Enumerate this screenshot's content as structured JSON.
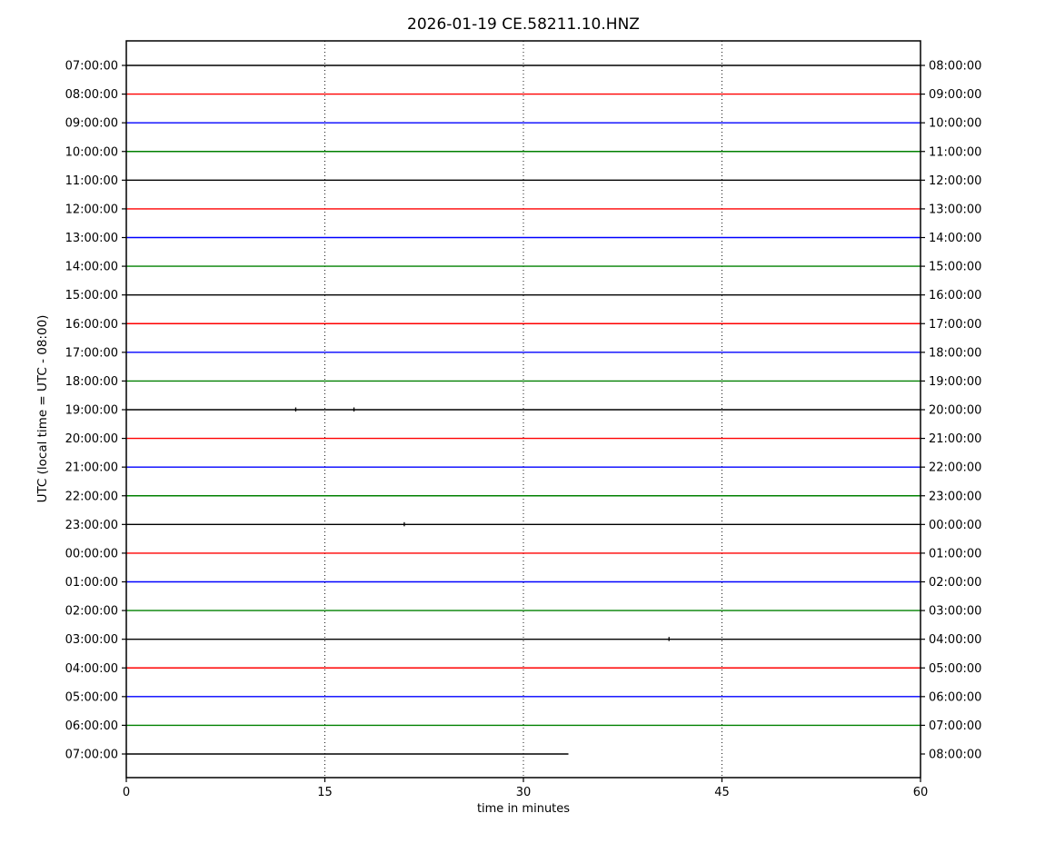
{
  "chart_data": {
    "type": "line",
    "variant": "seismic-helicorder-dayplot",
    "title": "2026-01-19 CE.58211.10.HNZ",
    "xlabel": "time in minutes",
    "ylabel": "UTC (local time = UTC - 08:00)",
    "xlim": [
      0,
      60
    ],
    "x_ticks": [
      0,
      15,
      30,
      45,
      60
    ],
    "x_gridlines": [
      15,
      30,
      45
    ],
    "grid_style": "dotted",
    "legend": "none",
    "minutes_per_row": 60,
    "color_cycle": [
      "#000000",
      "#ff0000",
      "#0000ff",
      "#008000"
    ],
    "rows": [
      {
        "left_label": "07:00:00",
        "right_label": "08:00:00",
        "color": "#000000",
        "start": 0,
        "end": 60
      },
      {
        "left_label": "08:00:00",
        "right_label": "09:00:00",
        "color": "#ff0000",
        "start": 0,
        "end": 60
      },
      {
        "left_label": "09:00:00",
        "right_label": "10:00:00",
        "color": "#0000ff",
        "start": 0,
        "end": 60
      },
      {
        "left_label": "10:00:00",
        "right_label": "11:00:00",
        "color": "#008000",
        "start": 0,
        "end": 60
      },
      {
        "left_label": "11:00:00",
        "right_label": "12:00:00",
        "color": "#000000",
        "start": 0,
        "end": 60
      },
      {
        "left_label": "12:00:00",
        "right_label": "13:00:00",
        "color": "#ff0000",
        "start": 0,
        "end": 60
      },
      {
        "left_label": "13:00:00",
        "right_label": "14:00:00",
        "color": "#0000ff",
        "start": 0,
        "end": 60
      },
      {
        "left_label": "14:00:00",
        "right_label": "15:00:00",
        "color": "#008000",
        "start": 0,
        "end": 60
      },
      {
        "left_label": "15:00:00",
        "right_label": "16:00:00",
        "color": "#000000",
        "start": 0,
        "end": 60
      },
      {
        "left_label": "16:00:00",
        "right_label": "17:00:00",
        "color": "#ff0000",
        "start": 0,
        "end": 60
      },
      {
        "left_label": "17:00:00",
        "right_label": "18:00:00",
        "color": "#0000ff",
        "start": 0,
        "end": 60
      },
      {
        "left_label": "18:00:00",
        "right_label": "19:00:00",
        "color": "#008000",
        "start": 0,
        "end": 60
      },
      {
        "left_label": "19:00:00",
        "right_label": "20:00:00",
        "color": "#000000",
        "start": 0,
        "end": 60,
        "blips": [
          12.8,
          17.2
        ]
      },
      {
        "left_label": "20:00:00",
        "right_label": "21:00:00",
        "color": "#ff0000",
        "start": 0,
        "end": 60
      },
      {
        "left_label": "21:00:00",
        "right_label": "22:00:00",
        "color": "#0000ff",
        "start": 0,
        "end": 60
      },
      {
        "left_label": "22:00:00",
        "right_label": "23:00:00",
        "color": "#008000",
        "start": 0,
        "end": 60
      },
      {
        "left_label": "23:00:00",
        "right_label": "00:00:00",
        "color": "#000000",
        "start": 0,
        "end": 60,
        "blips": [
          21.0
        ]
      },
      {
        "left_label": "00:00:00",
        "right_label": "01:00:00",
        "color": "#ff0000",
        "start": 0,
        "end": 60
      },
      {
        "left_label": "01:00:00",
        "right_label": "02:00:00",
        "color": "#0000ff",
        "start": 0,
        "end": 60
      },
      {
        "left_label": "02:00:00",
        "right_label": "03:00:00",
        "color": "#008000",
        "start": 0,
        "end": 60
      },
      {
        "left_label": "03:00:00",
        "right_label": "04:00:00",
        "color": "#000000",
        "start": 0,
        "end": 60,
        "blips": [
          41.0
        ]
      },
      {
        "left_label": "04:00:00",
        "right_label": "05:00:00",
        "color": "#ff0000",
        "start": 0,
        "end": 60
      },
      {
        "left_label": "05:00:00",
        "right_label": "06:00:00",
        "color": "#0000ff",
        "start": 0,
        "end": 60
      },
      {
        "left_label": "06:00:00",
        "right_label": "07:00:00",
        "color": "#008000",
        "start": 0,
        "end": 60
      },
      {
        "left_label": "07:00:00",
        "right_label": "08:00:00",
        "color": "#000000",
        "start": 0,
        "end": 33.4
      }
    ]
  }
}
